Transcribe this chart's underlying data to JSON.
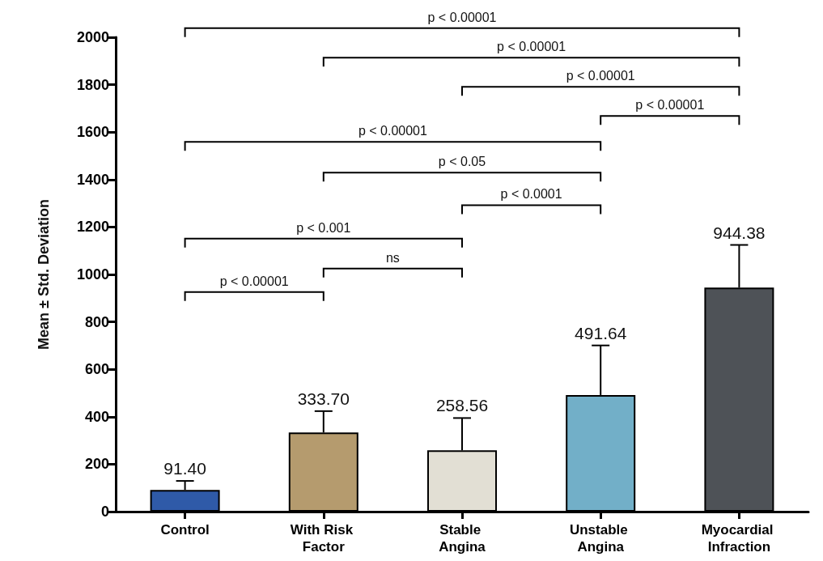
{
  "chart_data": {
    "type": "bar",
    "ylabel": "Mean ± Std. Deviation",
    "categories": [
      "Control",
      "With Risk Factor",
      "Stable Angina",
      "Unstable Angina",
      "Myocardial Infraction"
    ],
    "values": [
      91.4,
      333.7,
      258.56,
      491.64,
      944.38
    ],
    "colors": [
      "#2f5aa8",
      "#b59b6e",
      "#e2dfd4",
      "#72afc8",
      "#4e5257"
    ],
    "errors": [
      38,
      90,
      136,
      209,
      180
    ],
    "value_labels": [
      "91.40",
      "333.70",
      "258.56",
      "491.64",
      "944.38"
    ],
    "ylim": [
      0,
      2000
    ],
    "yticks": [
      0,
      200,
      400,
      600,
      800,
      1000,
      1200,
      1400,
      1600,
      1800,
      2000
    ],
    "grid": false,
    "annotations": [
      "p < 0.00001",
      "p < 0.00001",
      "p < 0.00001",
      "p < 0.00001",
      "p < 0.00001",
      "p < 0.05",
      "p < 0.0001",
      "p < 0.001",
      "ns",
      "p < 0.00001"
    ]
  }
}
